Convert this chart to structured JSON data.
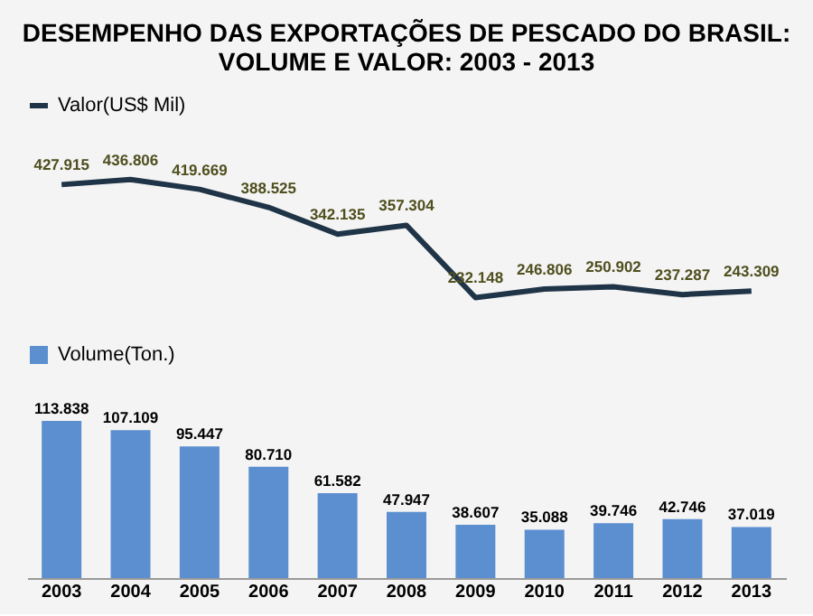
{
  "chart_data": [
    {
      "type": "line",
      "title": "DESEMPENHO DAS EXPORTAÇÕES DE PESCADO DO BRASIL: VOLUME E VALOR: 2003 - 2013",
      "categories": [
        "2003",
        "2004",
        "2005",
        "2006",
        "2007",
        "2008",
        "2009",
        "2010",
        "2011",
        "2012",
        "2013"
      ],
      "series": [
        {
          "name": "Valor(US$ Mil)",
          "color": "#1f3447",
          "values": [
            427915,
            436806,
            419669,
            388525,
            342135,
            357304,
            232148,
            246806,
            250902,
            237287,
            243309
          ],
          "value_labels": [
            "427.915",
            "436.806",
            "419.669",
            "388.525",
            "342.135",
            "357.304",
            "232.148",
            "246.806",
            "250.902",
            "237.287",
            "243.309"
          ]
        }
      ],
      "tick_labels": false,
      "legend": "top"
    },
    {
      "type": "bar",
      "categories": [
        "2003",
        "2004",
        "2005",
        "2006",
        "2007",
        "2008",
        "2009",
        "2010",
        "2011",
        "2012",
        "2013"
      ],
      "series": [
        {
          "name": "Volume(Ton.)",
          "color": "#5b8fd0",
          "values": [
            113838,
            107109,
            95447,
            80710,
            61582,
            47947,
            38607,
            35088,
            39746,
            42746,
            37019
          ],
          "value_labels": [
            "113.838",
            "107.109",
            "95.447",
            "80.710",
            "61.582",
            "47.947",
            "38.607",
            "35.088",
            "39.746",
            "42.746",
            "37.019"
          ]
        }
      ],
      "legend": "top"
    }
  ]
}
